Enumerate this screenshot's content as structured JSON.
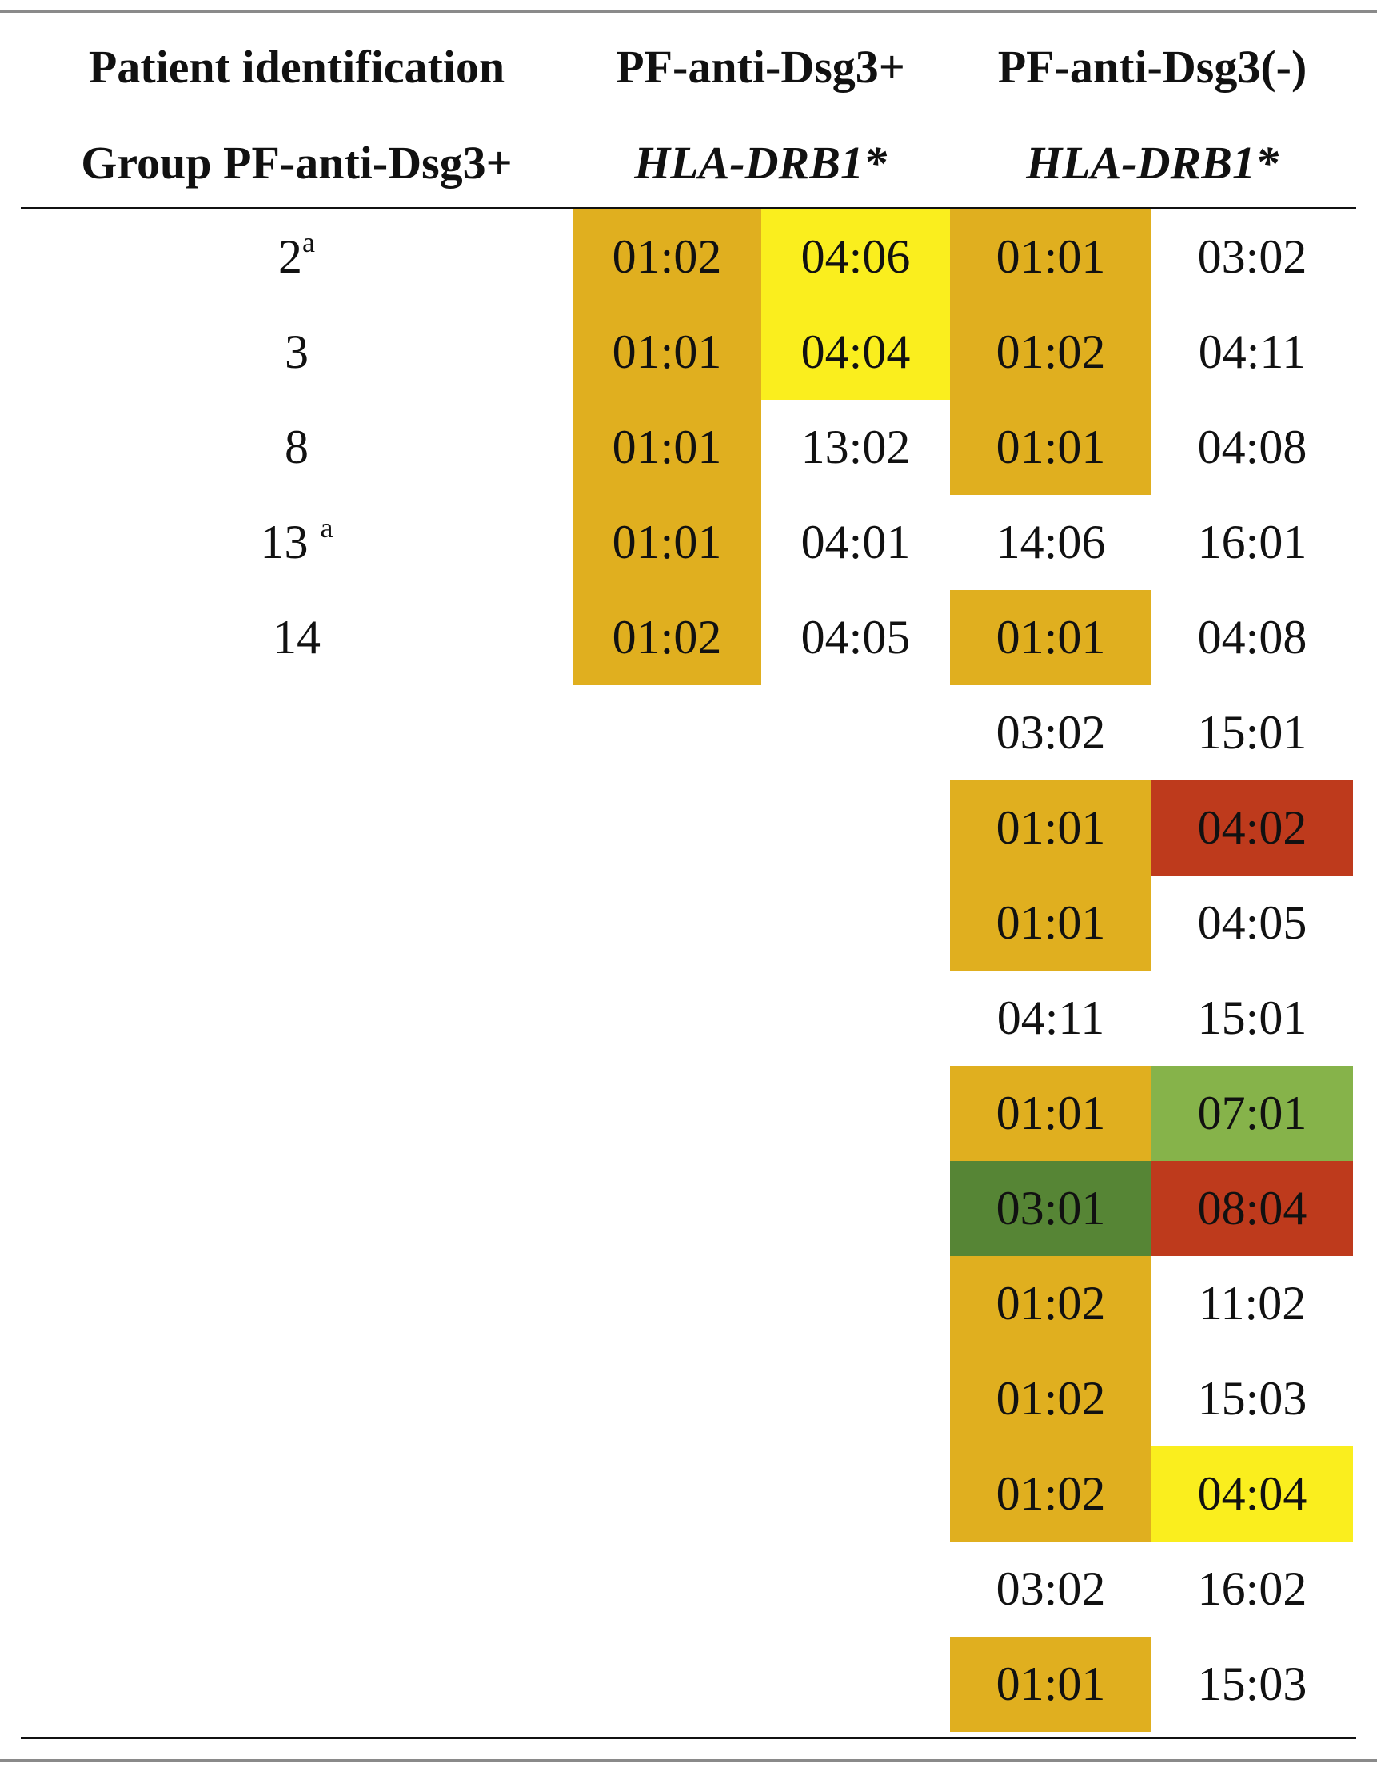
{
  "header": {
    "row1": [
      "Patient identification",
      "PF-anti-Dsg3+",
      "PF-anti-Dsg3(-)"
    ],
    "row2": [
      "Group PF-anti-Dsg3+",
      "HLA-DRB1*",
      "HLA-DRB1*"
    ]
  },
  "colors": {
    "orange": "#E0AF1F",
    "yellow": "#FAEE1E",
    "red": "#BE3A1C",
    "lightgreen": "#86B34A",
    "darkgreen": "#568535"
  },
  "rows": [
    {
      "id": "2",
      "sup": "a",
      "c": [
        [
          "01:02",
          "orange"
        ],
        [
          "04:06",
          "yellow"
        ],
        [
          "01:01",
          "orange"
        ],
        [
          "03:02",
          ""
        ]
      ]
    },
    {
      "id": "3",
      "sup": "",
      "c": [
        [
          "01:01",
          "orange"
        ],
        [
          "04:04",
          "yellow"
        ],
        [
          "01:02",
          "orange"
        ],
        [
          "04:11",
          ""
        ]
      ]
    },
    {
      "id": "8",
      "sup": "",
      "c": [
        [
          "01:01",
          "orange"
        ],
        [
          "13:02",
          ""
        ],
        [
          "01:01",
          "orange"
        ],
        [
          "04:08",
          ""
        ]
      ]
    },
    {
      "id": "13",
      "sup": "a",
      "c": [
        [
          "01:01",
          "orange"
        ],
        [
          "04:01",
          ""
        ],
        [
          "14:06",
          ""
        ],
        [
          "16:01",
          ""
        ]
      ]
    },
    {
      "id": "14",
      "sup": "",
      "c": [
        [
          "01:02",
          "orange"
        ],
        [
          "04:05",
          ""
        ],
        [
          "01:01",
          "orange"
        ],
        [
          "04:08",
          ""
        ]
      ]
    },
    {
      "id": "",
      "sup": "",
      "c": [
        [
          "",
          ""
        ],
        [
          "",
          ""
        ],
        [
          "03:02",
          ""
        ],
        [
          "15:01",
          ""
        ]
      ]
    },
    {
      "id": "",
      "sup": "",
      "c": [
        [
          "",
          ""
        ],
        [
          "",
          ""
        ],
        [
          "01:01",
          "orange"
        ],
        [
          "04:02",
          "red"
        ]
      ]
    },
    {
      "id": "",
      "sup": "",
      "c": [
        [
          "",
          ""
        ],
        [
          "",
          ""
        ],
        [
          "01:01",
          "orange"
        ],
        [
          "04:05",
          ""
        ]
      ]
    },
    {
      "id": "",
      "sup": "",
      "c": [
        [
          "",
          ""
        ],
        [
          "",
          ""
        ],
        [
          "04:11",
          ""
        ],
        [
          "15:01",
          ""
        ]
      ]
    },
    {
      "id": "",
      "sup": "",
      "c": [
        [
          "",
          ""
        ],
        [
          "",
          ""
        ],
        [
          "01:01",
          "orange"
        ],
        [
          "07:01",
          "lightgreen"
        ]
      ]
    },
    {
      "id": "",
      "sup": "",
      "c": [
        [
          "",
          ""
        ],
        [
          "",
          ""
        ],
        [
          "03:01",
          "darkgreen"
        ],
        [
          "08:04",
          "red"
        ]
      ]
    },
    {
      "id": "",
      "sup": "",
      "c": [
        [
          "",
          ""
        ],
        [
          "",
          ""
        ],
        [
          "01:02",
          "orange"
        ],
        [
          "11:02",
          ""
        ]
      ]
    },
    {
      "id": "",
      "sup": "",
      "c": [
        [
          "",
          ""
        ],
        [
          "",
          ""
        ],
        [
          "01:02",
          "orange"
        ],
        [
          "15:03",
          ""
        ]
      ]
    },
    {
      "id": "",
      "sup": "",
      "c": [
        [
          "",
          ""
        ],
        [
          "",
          ""
        ],
        [
          "01:02",
          "orange"
        ],
        [
          "04:04",
          "yellow"
        ]
      ]
    },
    {
      "id": "",
      "sup": "",
      "c": [
        [
          "",
          ""
        ],
        [
          "",
          ""
        ],
        [
          "03:02",
          ""
        ],
        [
          "16:02",
          ""
        ]
      ]
    },
    {
      "id": "",
      "sup": "",
      "c": [
        [
          "",
          ""
        ],
        [
          "",
          ""
        ],
        [
          "01:01",
          "orange"
        ],
        [
          "15:03",
          ""
        ]
      ]
    }
  ]
}
